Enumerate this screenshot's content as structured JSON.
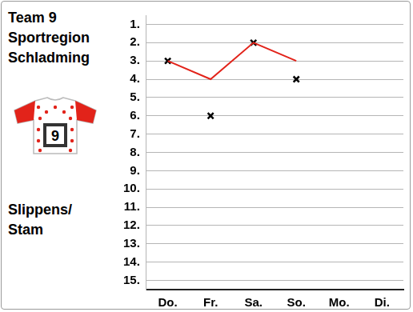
{
  "chart_data": {
    "type": "line",
    "title": [
      "Team 9",
      "Sportregion",
      "Schladming"
    ],
    "subtitle": [
      "Slippens/",
      "Stam"
    ],
    "jersey": "9",
    "categories": [
      "Do.",
      "Fr.",
      "Sa.",
      "So.",
      "Mo.",
      "Di."
    ],
    "series": [
      {
        "type": "line",
        "color": "#e2231a",
        "marker": "none",
        "line_style": "solid",
        "values": [
          3,
          4,
          2,
          3,
          null,
          null
        ]
      },
      {
        "type": "scatter",
        "color": "#000000",
        "marker": "x",
        "values": [
          3,
          6,
          2,
          4,
          null,
          null
        ]
      }
    ],
    "ylim": [
      15.5,
      0.5
    ],
    "yticks": [
      {
        "value": 1,
        "label": "1."
      },
      {
        "value": 2,
        "label": "2."
      },
      {
        "value": 3,
        "label": "3."
      },
      {
        "value": 4,
        "label": "4."
      },
      {
        "value": 5,
        "label": "5."
      },
      {
        "value": 6,
        "label": "6."
      },
      {
        "value": 7,
        "label": "7."
      },
      {
        "value": 8,
        "label": "8."
      },
      {
        "value": 9,
        "label": "9."
      },
      {
        "value": 10,
        "label": "10."
      },
      {
        "value": 11,
        "label": "11."
      },
      {
        "value": 12,
        "label": "12."
      },
      {
        "value": 13,
        "label": "13."
      },
      {
        "value": 14,
        "label": "14."
      },
      {
        "value": 15,
        "label": "15."
      }
    ],
    "grid": true
  }
}
